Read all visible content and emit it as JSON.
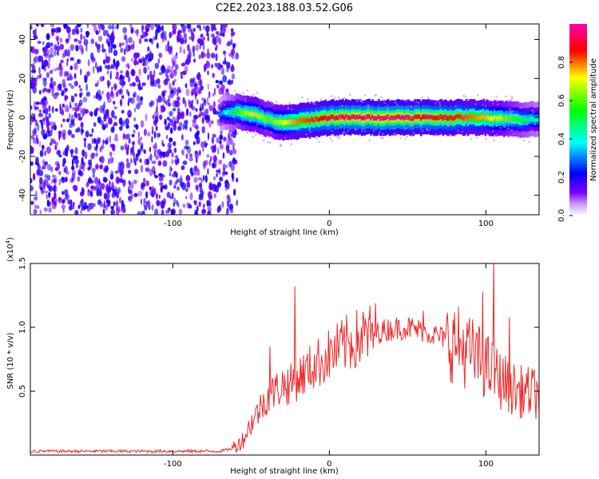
{
  "title": "C2E2.2023.188.03.52.G06",
  "colors": {
    "snr_line": "#ee2a2a",
    "frame": "#000000",
    "colormap": [
      "#ffffff",
      "#7a00ff",
      "#0000ff",
      "#00ffff",
      "#00ff00",
      "#ffff00",
      "#ff0000",
      "#ff00ff"
    ]
  },
  "chart_data": [
    {
      "type": "heatmap",
      "xlabel": "Height of straight line (km)",
      "ylabel": "Frequency (Hz)",
      "xlim": [
        -191,
        134
      ],
      "ylim": [
        -50,
        48
      ],
      "x_ticks": [
        {
          "v": -100,
          "label": "-100"
        },
        {
          "v": 0,
          "label": "0"
        },
        {
          "v": 100,
          "label": "100"
        }
      ],
      "y_ticks": [
        {
          "v": -40,
          "label": "-40"
        },
        {
          "v": -20,
          "label": "-20"
        },
        {
          "v": 0,
          "label": "0"
        },
        {
          "v": 20,
          "label": "20"
        },
        {
          "v": 40,
          "label": "40"
        }
      ],
      "noise_region": [
        -191,
        -62
      ],
      "signal_track": {
        "x": [
          -70,
          -60,
          -50,
          -40,
          -30,
          -20,
          -10,
          0,
          20,
          40,
          60,
          80,
          100,
          120,
          134
        ],
        "frequency_hz": [
          2,
          3,
          2,
          -1,
          -3,
          -2,
          -1,
          0,
          0,
          0,
          0,
          0,
          0,
          -1,
          -1
        ],
        "peak_amplitude": [
          0.3,
          0.55,
          0.7,
          0.6,
          0.7,
          0.8,
          0.85,
          0.9,
          0.95,
          0.95,
          0.9,
          0.85,
          0.75,
          0.55,
          0.4
        ]
      },
      "colorbar": {
        "label": "Normalized spectral amplitude",
        "range": [
          0,
          1
        ],
        "ticks": [
          {
            "v": 0.0,
            "label": "0.0"
          },
          {
            "v": 0.2,
            "label": "0.2"
          },
          {
            "v": 0.4,
            "label": "0.4"
          },
          {
            "v": 0.6,
            "label": "0.6"
          },
          {
            "v": 0.8,
            "label": "0.8"
          }
        ]
      }
    },
    {
      "type": "line",
      "xlabel": "Height of straight line (km)",
      "ylabel": "SNR (10 * v/v)",
      "y_multiplier": "(x10",
      "y_multiplier_exp": "4",
      "y_multiplier_close": ")",
      "xlim": [
        -191,
        134
      ],
      "ylim": [
        0,
        1.5
      ],
      "x_ticks": [
        {
          "v": -100,
          "label": "-100"
        },
        {
          "v": 0,
          "label": "0"
        },
        {
          "v": 100,
          "label": "100"
        }
      ],
      "y_ticks": [
        {
          "v": 0.5,
          "label": "0.5"
        },
        {
          "v": 1.0,
          "label": "1.0"
        },
        {
          "v": 1.5,
          "label": "1.5"
        }
      ],
      "series": [
        {
          "x": [
            -191,
            -150,
            -100,
            -70,
            -62,
            -55,
            -50,
            -45,
            -40,
            -35,
            -30,
            -25,
            -20,
            -15,
            -10,
            0,
            10,
            20,
            30,
            40,
            50,
            60,
            70,
            80,
            90,
            100,
            110,
            120,
            134
          ],
          "y": [
            0.03,
            0.03,
            0.03,
            0.03,
            0.05,
            0.12,
            0.25,
            0.35,
            0.45,
            0.5,
            0.55,
            0.55,
            0.6,
            0.65,
            0.7,
            0.78,
            0.86,
            0.92,
            0.96,
            0.99,
            1.0,
            0.97,
            0.93,
            0.88,
            0.8,
            0.7,
            0.58,
            0.5,
            0.48
          ],
          "peaks": [
            {
              "x": -22,
              "y": 1.32
            },
            {
              "x": -38,
              "y": 0.85
            },
            {
              "x": 60,
              "y": 1.13
            },
            {
              "x": 98,
              "y": 1.28
            },
            {
              "x": 105,
              "y": 1.52
            },
            {
              "x": 115,
              "y": 1.08
            }
          ]
        }
      ]
    }
  ]
}
